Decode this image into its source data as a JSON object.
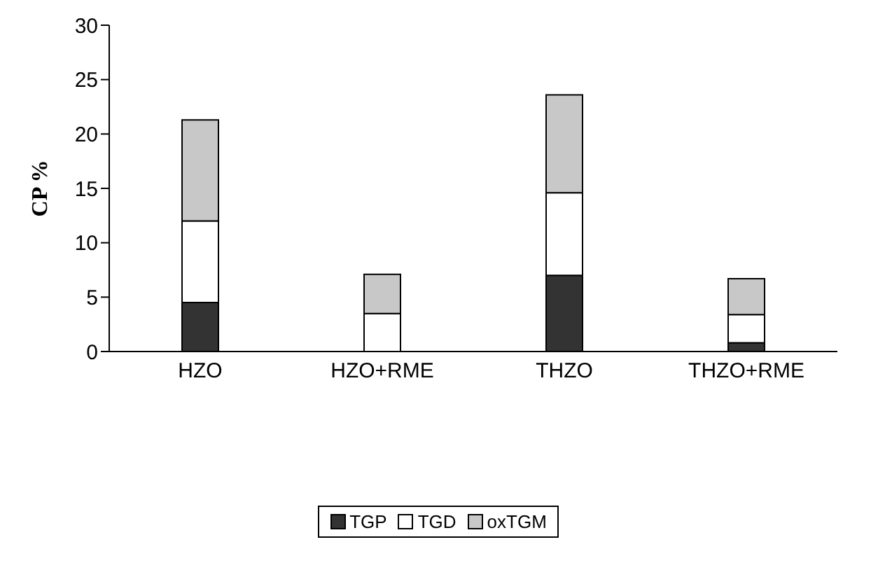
{
  "chart_data": {
    "type": "bar",
    "stacked": true,
    "ylabel": "CP %",
    "categories": [
      "HZO",
      "HZO+RME",
      "THZO",
      "THZO+RME"
    ],
    "series": [
      {
        "name": "TGP",
        "color": "#333333",
        "values": [
          4.5,
          0,
          7.0,
          0.8
        ]
      },
      {
        "name": "TGD",
        "color": "#ffffff",
        "values": [
          7.5,
          3.5,
          7.6,
          2.6
        ]
      },
      {
        "name": "oxTGM",
        "color": "#c8c8c8",
        "values": [
          9.3,
          3.6,
          9.0,
          3.3
        ]
      }
    ],
    "ylim": [
      0,
      30
    ],
    "yticks": [
      0,
      5,
      10,
      15,
      20,
      25,
      30
    ],
    "grid": false,
    "legend": "bottom"
  }
}
